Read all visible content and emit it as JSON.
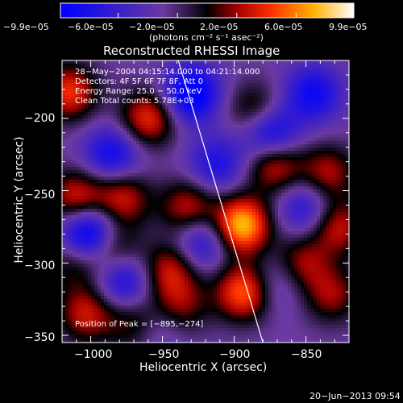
{
  "chart_data": {
    "type": "heatmap",
    "title": "Reconstructed RHESSI Image",
    "xlabel": "Heliocentric X (arcsec)",
    "ylabel": "Heliocentric Y (arcsec)",
    "xlim": [
      -1020,
      -820
    ],
    "ylim": [
      -355,
      -160
    ],
    "x_ticks": [
      -1000,
      -950,
      -900,
      -850
    ],
    "y_ticks": [
      -200,
      -250,
      -300,
      -350
    ],
    "x_tick_labels": [
      "−1000",
      "−950",
      "−900",
      "−850"
    ],
    "y_tick_labels": [
      "−200",
      "−250",
      "−300",
      "−350"
    ],
    "colorbar": {
      "min": -9.9e-05,
      "max": 9.9e-05,
      "tick_labels": [
        "−9.9e−05",
        "−6.0e−05",
        "−2.0e−05",
        "2.0e−05",
        "6.0e−05",
        "9.9e−05"
      ],
      "units": "(photons cm⁻² s⁻¹ asec⁻²)"
    },
    "annotations": {
      "time_range": "28−May−2004 04:15:14.000 to 04:21:14.000",
      "detectors": "Detectors: 4F 5F 6F 7F 8F, Att 0",
      "energy": "Energy Range: 25.0 − 50.0 keV",
      "clean": "Clean    Total counts: 5.78E+03",
      "peak": "Position of Peak = [−895,−274]"
    },
    "peak_position": [
      -895,
      -274
    ],
    "limb_line": [
      [
        -939,
        -160
      ],
      [
        -880,
        -355
      ]
    ],
    "sources": [
      {
        "x": -895,
        "y": -274,
        "amp": 1.0
      },
      {
        "x": -893,
        "y": -320,
        "amp": 0.8
      },
      {
        "x": -1015,
        "y": -182,
        "amp": 0.65
      },
      {
        "x": -960,
        "y": -200,
        "amp": 0.65
      },
      {
        "x": -885,
        "y": -195,
        "amp": 0.45
      },
      {
        "x": -872,
        "y": -232,
        "amp": 0.6
      },
      {
        "x": -835,
        "y": -238,
        "amp": 0.5
      },
      {
        "x": -828,
        "y": -275,
        "amp": 0.55
      },
      {
        "x": -853,
        "y": -300,
        "amp": 0.45
      },
      {
        "x": -832,
        "y": -322,
        "amp": 0.45
      },
      {
        "x": -1010,
        "y": -255,
        "amp": 0.6
      },
      {
        "x": -978,
        "y": -255,
        "amp": 0.55
      },
      {
        "x": -932,
        "y": -262,
        "amp": 0.55
      },
      {
        "x": -945,
        "y": -305,
        "amp": 0.55
      },
      {
        "x": -985,
        "y": -290,
        "amp": 0.5
      },
      {
        "x": -1012,
        "y": -300,
        "amp": 0.35
      },
      {
        "x": -1003,
        "y": -335,
        "amp": 0.55
      },
      {
        "x": -968,
        "y": -342,
        "amp": 0.45
      },
      {
        "x": -937,
        "y": -330,
        "amp": 0.4
      },
      {
        "x": -1001,
        "y": -280,
        "amp": -0.9
      },
      {
        "x": -930,
        "y": -183,
        "amp": -0.75
      },
      {
        "x": -875,
        "y": -210,
        "amp": -0.7
      },
      {
        "x": -977,
        "y": -312,
        "amp": -0.55
      },
      {
        "x": -922,
        "y": -285,
        "amp": -0.5
      },
      {
        "x": -985,
        "y": -225,
        "amp": -0.55
      },
      {
        "x": -845,
        "y": -183,
        "amp": -0.55
      },
      {
        "x": -850,
        "y": -262,
        "amp": -0.45
      },
      {
        "x": -912,
        "y": -232,
        "amp": -0.45
      },
      {
        "x": -872,
        "y": -315,
        "amp": -0.3
      },
      {
        "x": -955,
        "y": -345,
        "amp": -0.3
      }
    ]
  },
  "footer": {
    "date": "20−Jun−2013 09:54"
  }
}
